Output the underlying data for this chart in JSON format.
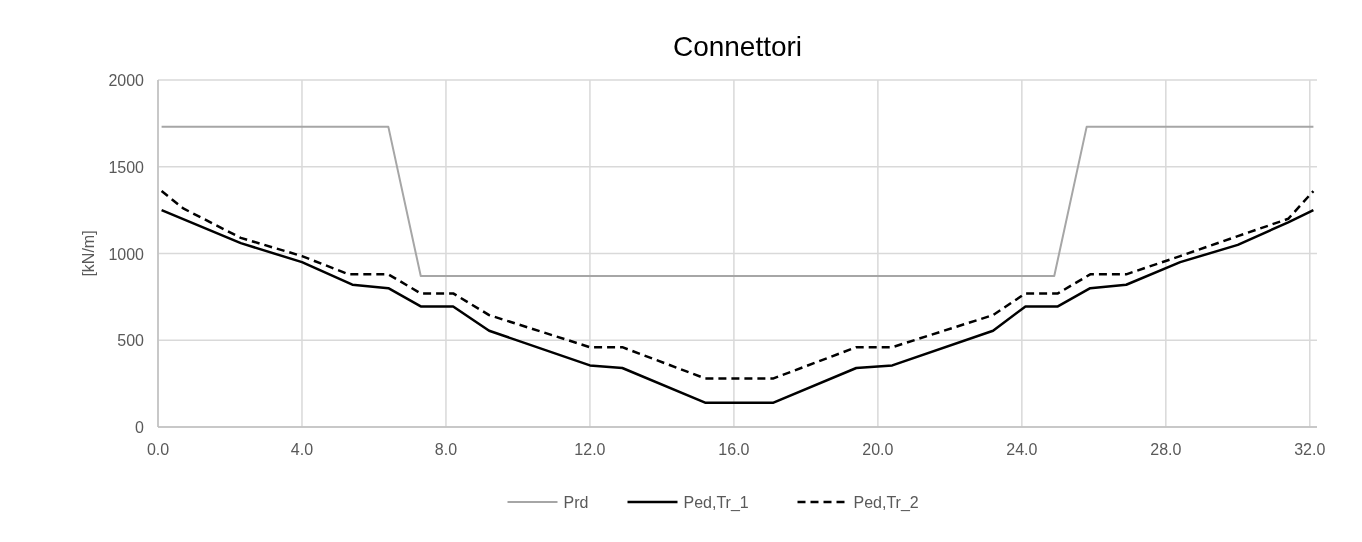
{
  "chart_data": {
    "type": "line",
    "title": "Connettori",
    "ylabel": "[kN/m]",
    "xlim": [
      0,
      32.2
    ],
    "xticks": [
      {
        "value": 0,
        "label": "0.0"
      },
      {
        "value": 4,
        "label": "4.0"
      },
      {
        "value": 8,
        "label": "8.0"
      },
      {
        "value": 12,
        "label": "12.0"
      },
      {
        "value": 16,
        "label": "16.0"
      },
      {
        "value": 20,
        "label": "20.0"
      },
      {
        "value": 24,
        "label": "24.0"
      },
      {
        "value": 28,
        "label": "28.0"
      },
      {
        "value": 32,
        "label": "32.0"
      }
    ],
    "ylim": [
      0,
      2000
    ],
    "yticks": [
      0,
      500,
      1000,
      1500,
      2000
    ],
    "grid": true,
    "legend": "bottom",
    "series": [
      {
        "name": "Prd",
        "color": "#a6a6a6",
        "line_style": "solid",
        "x": [
          0.1,
          6.4,
          7.3,
          24.9,
          25.8,
          32.1
        ],
        "values": [
          1730,
          1730,
          870,
          870,
          1730,
          1730
        ]
      },
      {
        "name": "Ped,Tr_1",
        "color": "#000000",
        "line_style": "solid",
        "x": [
          0.1,
          2.3,
          4.0,
          5.4,
          6.4,
          7.3,
          8.2,
          9.2,
          12.0,
          12.9,
          15.2,
          17.1,
          19.4,
          20.4,
          23.2,
          24.1,
          25.0,
          25.9,
          26.9,
          28.4,
          30.0,
          31.4,
          32.1
        ],
        "values": [
          1250,
          1060,
          950,
          820,
          800,
          695,
          695,
          555,
          355,
          340,
          140,
          140,
          340,
          355,
          555,
          695,
          695,
          800,
          820,
          950,
          1050,
          1180,
          1250
        ]
      },
      {
        "name": "Ped,Tr_2",
        "color": "#000000",
        "line_style": "dashed",
        "x": [
          0.1,
          0.7,
          2.3,
          4.0,
          5.3,
          6.4,
          7.3,
          8.2,
          9.2,
          12.0,
          12.9,
          15.2,
          17.1,
          19.4,
          20.4,
          23.2,
          24.1,
          25.0,
          25.9,
          26.9,
          28.4,
          30.0,
          31.4,
          32.1
        ],
        "values": [
          1360,
          1260,
          1090,
          985,
          880,
          880,
          770,
          770,
          645,
          460,
          460,
          280,
          280,
          460,
          460,
          645,
          770,
          770,
          880,
          880,
          985,
          1100,
          1200,
          1360
        ]
      }
    ]
  }
}
